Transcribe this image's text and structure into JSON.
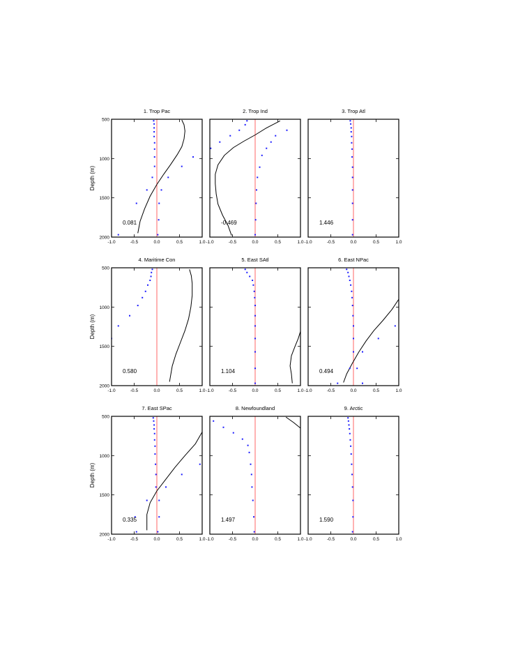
{
  "chart_data": {
    "type": "scatter",
    "layout": "3x3 grid",
    "ylabel": "Depth (m)",
    "ylim": [
      2000,
      500
    ],
    "yticks": [
      500,
      1000,
      1500,
      2000
    ],
    "ytick_labels": [
      "500",
      "1000",
      "1500",
      "2000"
    ],
    "xlim": [
      -1.0,
      1.0
    ],
    "xticks": [
      -1.0,
      -0.5,
      0.0,
      0.5,
      1.0
    ],
    "xtick_labels": [
      "-1.0",
      "-0.5",
      "0.0",
      "0.5",
      "1.0"
    ],
    "colors": {
      "points": "#1a1aff",
      "zero_line": "#ff6666",
      "curve": "#000000"
    },
    "panels": [
      {
        "title": "1. Trop Pac",
        "stat": "0.081",
        "points": [
          [
            -0.07,
            520
          ],
          [
            -0.06,
            560
          ],
          [
            -0.06,
            610
          ],
          [
            -0.06,
            660
          ],
          [
            -0.06,
            720
          ],
          [
            -0.05,
            800
          ],
          [
            -0.05,
            880
          ],
          [
            -0.05,
            980
          ],
          [
            -0.05,
            1100
          ],
          [
            0.8,
            980
          ],
          [
            0.55,
            1100
          ],
          [
            -0.1,
            1240
          ],
          [
            0.25,
            1240
          ],
          [
            -0.22,
            1400
          ],
          [
            0.1,
            1400
          ],
          [
            -0.45,
            1570
          ],
          [
            0.05,
            1570
          ],
          [
            0.04,
            1780
          ],
          [
            -0.85,
            1970
          ],
          [
            0.02,
            1970
          ]
        ],
        "curve": [
          [
            0.55,
            510
          ],
          [
            0.6,
            570
          ],
          [
            0.62,
            650
          ],
          [
            0.6,
            750
          ],
          [
            0.55,
            850
          ],
          [
            0.45,
            950
          ],
          [
            0.3,
            1080
          ],
          [
            0.15,
            1200
          ],
          [
            0.0,
            1330
          ],
          [
            -0.15,
            1480
          ],
          [
            -0.27,
            1640
          ],
          [
            -0.37,
            1800
          ],
          [
            -0.42,
            1950
          ]
        ]
      },
      {
        "title": "2. Trop Ind",
        "stat": "-0.469",
        "points": [
          [
            -0.18,
            520
          ],
          [
            -0.22,
            570
          ],
          [
            -0.35,
            640
          ],
          [
            -0.55,
            710
          ],
          [
            -0.78,
            790
          ],
          [
            -0.98,
            870
          ],
          [
            0.7,
            640
          ],
          [
            0.45,
            710
          ],
          [
            0.35,
            790
          ],
          [
            0.25,
            870
          ],
          [
            0.15,
            960
          ],
          [
            0.1,
            1110
          ],
          [
            0.05,
            1240
          ],
          [
            0.03,
            1400
          ],
          [
            0.02,
            1570
          ],
          [
            0.01,
            1780
          ],
          [
            0.0,
            1970
          ]
        ],
        "curve": [
          [
            0.55,
            520
          ],
          [
            0.25,
            610
          ],
          [
            0.0,
            700
          ],
          [
            -0.25,
            780
          ],
          [
            -0.48,
            860
          ],
          [
            -0.68,
            960
          ],
          [
            -0.82,
            1080
          ],
          [
            -0.88,
            1200
          ],
          [
            -0.88,
            1320
          ],
          [
            -0.86,
            1450
          ],
          [
            -0.82,
            1580
          ],
          [
            -0.72,
            1720
          ],
          [
            -0.6,
            1850
          ],
          [
            -0.52,
            1980
          ]
        ]
      },
      {
        "title": "3. Trop Atl",
        "stat": "1.446",
        "points": [
          [
            -0.07,
            520
          ],
          [
            -0.06,
            560
          ],
          [
            -0.05,
            610
          ],
          [
            -0.05,
            660
          ],
          [
            -0.04,
            720
          ],
          [
            -0.04,
            800
          ],
          [
            -0.03,
            880
          ],
          [
            -0.03,
            980
          ],
          [
            -0.02,
            1110
          ],
          [
            -0.02,
            1240
          ],
          [
            -0.02,
            1400
          ],
          [
            -0.02,
            1570
          ],
          [
            -0.02,
            1780
          ],
          [
            -0.02,
            1970
          ]
        ],
        "curve": []
      },
      {
        "title": "4. Maritime Con",
        "stat": "0.580",
        "points": [
          [
            -0.1,
            520
          ],
          [
            -0.12,
            560
          ],
          [
            -0.13,
            610
          ],
          [
            -0.15,
            660
          ],
          [
            -0.2,
            720
          ],
          [
            -0.25,
            800
          ],
          [
            -0.32,
            880
          ],
          [
            -0.42,
            980
          ],
          [
            -0.6,
            1110
          ],
          [
            -0.85,
            1240
          ],
          [
            -1.0,
            1400
          ]
        ],
        "curve": [
          [
            0.72,
            520
          ],
          [
            0.76,
            600
          ],
          [
            0.78,
            700
          ],
          [
            0.78,
            850
          ],
          [
            0.75,
            1000
          ],
          [
            0.7,
            1150
          ],
          [
            0.62,
            1300
          ],
          [
            0.52,
            1450
          ],
          [
            0.42,
            1600
          ],
          [
            0.34,
            1750
          ],
          [
            0.28,
            1950
          ]
        ]
      },
      {
        "title": "5. East SAtl",
        "stat": "1.104",
        "points": [
          [
            -0.22,
            520
          ],
          [
            -0.18,
            560
          ],
          [
            -0.12,
            610
          ],
          [
            -0.06,
            660
          ],
          [
            -0.04,
            720
          ],
          [
            -0.02,
            800
          ],
          [
            -0.01,
            880
          ],
          [
            0.0,
            980
          ],
          [
            0.0,
            1110
          ],
          [
            0.0,
            1240
          ],
          [
            0.0,
            1400
          ],
          [
            0.0,
            1570
          ],
          [
            0.0,
            1780
          ],
          [
            0.0,
            1970
          ]
        ],
        "curve": [
          [
            1.0,
            1310
          ],
          [
            0.95,
            1400
          ],
          [
            0.88,
            1500
          ],
          [
            0.8,
            1620
          ],
          [
            0.77,
            1750
          ],
          [
            0.8,
            1850
          ],
          [
            0.82,
            1970
          ]
        ]
      },
      {
        "title": "6. East NPac",
        "stat": "0.494",
        "points": [
          [
            -0.15,
            520
          ],
          [
            -0.12,
            560
          ],
          [
            -0.1,
            610
          ],
          [
            -0.08,
            660
          ],
          [
            -0.06,
            720
          ],
          [
            -0.04,
            800
          ],
          [
            -0.03,
            880
          ],
          [
            -0.02,
            980
          ],
          [
            -0.01,
            1110
          ],
          [
            0.0,
            1240
          ],
          [
            0.0,
            1400
          ],
          [
            0.0,
            1570
          ],
          [
            -0.08,
            1780
          ],
          [
            0.08,
            1780
          ],
          [
            0.2,
            1570
          ],
          [
            0.55,
            1400
          ],
          [
            0.92,
            1240
          ],
          [
            -0.35,
            1970
          ],
          [
            0.2,
            1970
          ]
        ],
        "curve": [
          [
            1.0,
            900
          ],
          [
            0.85,
            1030
          ],
          [
            0.65,
            1170
          ],
          [
            0.45,
            1300
          ],
          [
            0.28,
            1430
          ],
          [
            0.12,
            1570
          ],
          [
            -0.03,
            1720
          ],
          [
            -0.15,
            1850
          ],
          [
            -0.22,
            1960
          ]
        ]
      },
      {
        "title": "7. East SPac",
        "stat": "0.335",
        "points": [
          [
            -0.08,
            520
          ],
          [
            -0.07,
            560
          ],
          [
            -0.06,
            610
          ],
          [
            -0.06,
            660
          ],
          [
            -0.05,
            720
          ],
          [
            -0.05,
            800
          ],
          [
            -0.04,
            880
          ],
          [
            -0.04,
            980
          ],
          [
            -0.03,
            1110
          ],
          [
            -0.02,
            1240
          ],
          [
            -0.02,
            1400
          ],
          [
            0.55,
            1240
          ],
          [
            0.2,
            1400
          ],
          [
            0.95,
            1110
          ],
          [
            -0.22,
            1570
          ],
          [
            0.05,
            1570
          ],
          [
            -0.48,
            1780
          ],
          [
            0.05,
            1780
          ],
          [
            -0.45,
            1970
          ],
          [
            0.02,
            1970
          ]
        ],
        "curve": [
          [
            1.0,
            700
          ],
          [
            0.85,
            850
          ],
          [
            0.62,
            1000
          ],
          [
            0.4,
            1150
          ],
          [
            0.2,
            1300
          ],
          [
            0.0,
            1450
          ],
          [
            -0.15,
            1600
          ],
          [
            -0.22,
            1750
          ],
          [
            -0.22,
            1950
          ]
        ]
      },
      {
        "title": "8. Newfoundland",
        "stat": "1.497",
        "points": [
          [
            -0.92,
            560
          ],
          [
            -0.7,
            640
          ],
          [
            -0.48,
            710
          ],
          [
            -0.28,
            790
          ],
          [
            -0.16,
            870
          ],
          [
            -0.13,
            960
          ],
          [
            -0.1,
            1110
          ],
          [
            -0.08,
            1240
          ],
          [
            -0.07,
            1400
          ],
          [
            -0.05,
            1570
          ],
          [
            -0.03,
            1780
          ],
          [
            -0.02,
            1970
          ]
        ],
        "curve": [
          [
            0.68,
            510
          ],
          [
            0.85,
            580
          ],
          [
            1.0,
            650
          ]
        ]
      },
      {
        "title": "9. Arctic",
        "stat": "1.590",
        "points": [
          [
            -0.12,
            520
          ],
          [
            -0.11,
            560
          ],
          [
            -0.1,
            610
          ],
          [
            -0.09,
            660
          ],
          [
            -0.08,
            720
          ],
          [
            -0.07,
            800
          ],
          [
            -0.06,
            880
          ],
          [
            -0.05,
            980
          ],
          [
            -0.04,
            1110
          ],
          [
            -0.03,
            1240
          ],
          [
            -0.02,
            1400
          ],
          [
            -0.01,
            1570
          ],
          [
            -0.01,
            1780
          ],
          [
            -0.02,
            1970
          ]
        ],
        "curve": []
      }
    ]
  }
}
